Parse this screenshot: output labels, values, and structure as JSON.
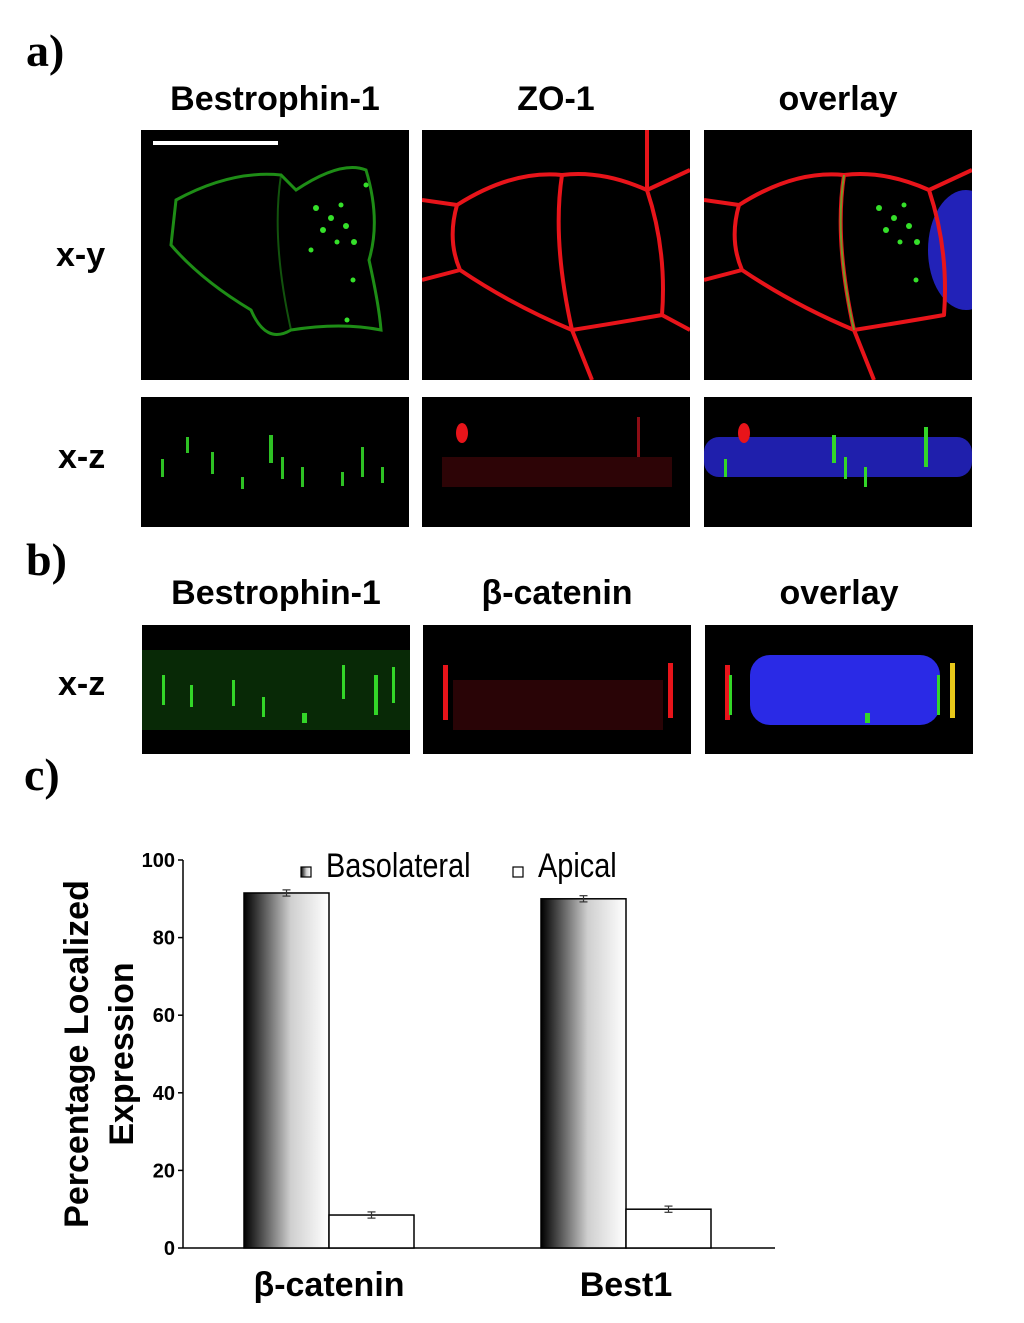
{
  "panels": {
    "a": {
      "letter": "a)",
      "columns": [
        "Bestrophin-1",
        "ZO-1",
        "overlay"
      ],
      "rows": [
        "x-y",
        "x-z"
      ]
    },
    "b": {
      "letter": "b)",
      "columns": [
        "Bestrophin-1",
        "β-catenin",
        "overlay"
      ],
      "rows": [
        "x-z"
      ]
    },
    "c": {
      "letter": "c)"
    }
  },
  "colors": {
    "green_channel": "#2ecc1f",
    "red_channel": "#e8141a",
    "blue_channel": "#2a2ae6",
    "image_background": "#000000"
  },
  "chart_data": {
    "type": "bar",
    "categories": [
      "β-catenin",
      "Best1"
    ],
    "series": [
      {
        "name": "Basolateral",
        "values": [
          91.5,
          90
        ],
        "errors": [
          0.8,
          0.8
        ]
      },
      {
        "name": "Apical",
        "values": [
          8.5,
          10
        ],
        "errors": [
          0.8,
          0.8
        ]
      }
    ],
    "ylabel": "Percentage Localized Expression",
    "ylabel_lines": [
      "Percentage Localized",
      "Expression"
    ],
    "xlabel": "",
    "ylim": [
      0,
      100
    ],
    "yticks": [
      0,
      20,
      40,
      60,
      80,
      100
    ],
    "legend_position": "top",
    "series_styles": [
      "black-to-white gradient",
      "white fill"
    ]
  }
}
